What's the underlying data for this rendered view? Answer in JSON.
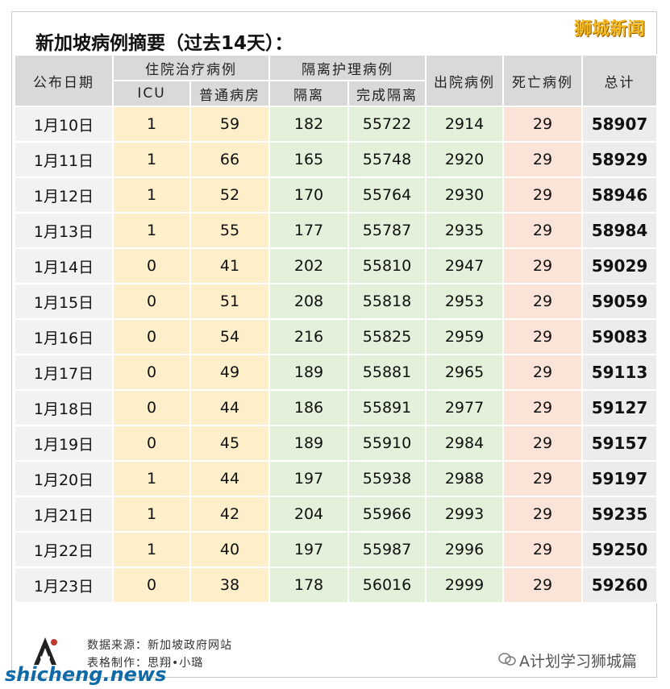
{
  "brand": "狮城新闻",
  "title": "新加坡病例摘要（过去14天）：",
  "headers": {
    "date": "公布日期",
    "hospital": "住院治疗病例",
    "icu": "ICU",
    "ward": "普通病房",
    "isolation_group": "隔离护理病例",
    "isolation": "隔离",
    "completed": "完成隔离",
    "discharged": "出院病例",
    "deaths": "死亡病例",
    "total": "总计"
  },
  "rows": [
    {
      "date": "1月10日",
      "icu": "1",
      "ward": "59",
      "iso": "182",
      "done": "55722",
      "dis": "2914",
      "dead": "29",
      "total": "58907"
    },
    {
      "date": "1月11日",
      "icu": "1",
      "ward": "66",
      "iso": "165",
      "done": "55748",
      "dis": "2920",
      "dead": "29",
      "total": "58929"
    },
    {
      "date": "1月12日",
      "icu": "1",
      "ward": "52",
      "iso": "170",
      "done": "55764",
      "dis": "2930",
      "dead": "29",
      "total": "58946"
    },
    {
      "date": "1月13日",
      "icu": "1",
      "ward": "55",
      "iso": "177",
      "done": "55787",
      "dis": "2935",
      "dead": "29",
      "total": "58984"
    },
    {
      "date": "1月14日",
      "icu": "0",
      "ward": "41",
      "iso": "202",
      "done": "55810",
      "dis": "2947",
      "dead": "29",
      "total": "59029"
    },
    {
      "date": "1月15日",
      "icu": "0",
      "ward": "51",
      "iso": "208",
      "done": "55818",
      "dis": "2953",
      "dead": "29",
      "total": "59059"
    },
    {
      "date": "1月16日",
      "icu": "0",
      "ward": "54",
      "iso": "216",
      "done": "55825",
      "dis": "2959",
      "dead": "29",
      "total": "59083"
    },
    {
      "date": "1月17日",
      "icu": "0",
      "ward": "49",
      "iso": "189",
      "done": "55881",
      "dis": "2965",
      "dead": "29",
      "total": "59113"
    },
    {
      "date": "1月18日",
      "icu": "0",
      "ward": "44",
      "iso": "186",
      "done": "55891",
      "dis": "2977",
      "dead": "29",
      "total": "59127"
    },
    {
      "date": "1月19日",
      "icu": "0",
      "ward": "45",
      "iso": "189",
      "done": "55910",
      "dis": "2984",
      "dead": "29",
      "total": "59157"
    },
    {
      "date": "1月20日",
      "icu": "1",
      "ward": "44",
      "iso": "197",
      "done": "55938",
      "dis": "2988",
      "dead": "29",
      "total": "59197"
    },
    {
      "date": "1月21日",
      "icu": "1",
      "ward": "42",
      "iso": "204",
      "done": "55966",
      "dis": "2993",
      "dead": "29",
      "total": "59235"
    },
    {
      "date": "1月22日",
      "icu": "1",
      "ward": "40",
      "iso": "197",
      "done": "55987",
      "dis": "2996",
      "dead": "29",
      "total": "59250"
    },
    {
      "date": "1月23日",
      "icu": "0",
      "ward": "38",
      "iso": "178",
      "done": "56016",
      "dis": "2999",
      "dead": "29",
      "total": "59260"
    }
  ],
  "footer": {
    "source": "数据来源：新加坡政府网站",
    "maker": "表格制作：思翔•小璐",
    "watermark_left": "shicheng.news",
    "watermark_right": "A计划学习狮城篇"
  },
  "colors": {
    "hospital_bg": "#fdefc9",
    "isolation_bg": "#e3f1da",
    "deaths_bg": "#fbe3d8",
    "header_bg": "#d9d9d9"
  }
}
